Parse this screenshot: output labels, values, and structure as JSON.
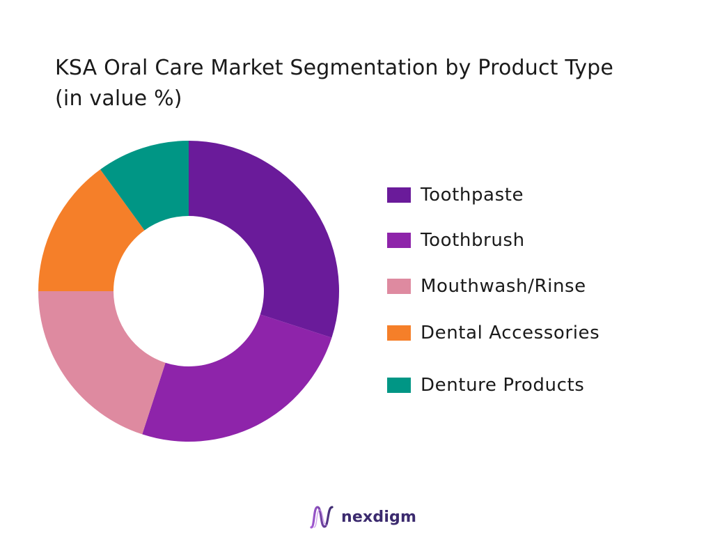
{
  "chart_data": {
    "type": "donut",
    "title_lines": [
      "KSA Oral Care Market Segmentation by Product Type",
      "(in value %)"
    ],
    "categories": [
      "Toothpaste",
      "Toothbrush",
      "Mouthwash/Rinse",
      "Dental Accessories",
      "Denture Products"
    ],
    "values": [
      30,
      25,
      20,
      15,
      10
    ],
    "unit": "%",
    "colors": [
      "#6a1b9a",
      "#8e24aa",
      "#de8aa0",
      "#f57f29",
      "#009685"
    ],
    "legend_position": "right",
    "start_angle": "12 o'clock",
    "direction": "clockwise"
  },
  "brand": {
    "name": "nexdigm",
    "logo_icon": "nexdigm-wave-logo"
  }
}
